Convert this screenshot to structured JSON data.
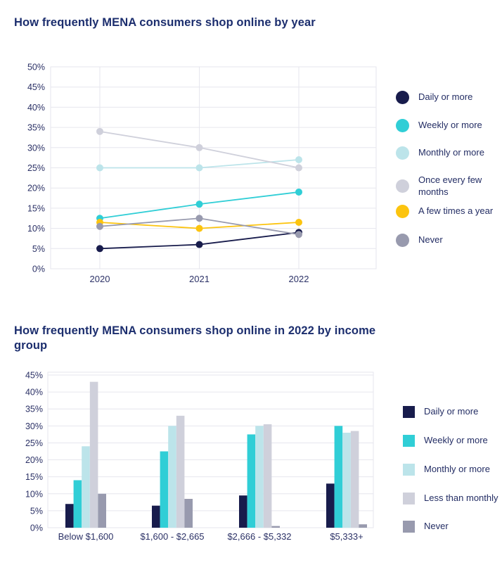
{
  "page": {
    "background": "#ffffff",
    "text_color": "#1c2e6e"
  },
  "colors": {
    "navy": "#181c4c",
    "teal": "#30ced6",
    "light_cyan": "#bce4ea",
    "light_gray": "#cfd0db",
    "yellow": "#fcc40f",
    "gray": "#989aae",
    "gridline": "#e6e6ee"
  },
  "chart_data": [
    {
      "type": "line",
      "title": "How frequently MENA consumers shop online by year",
      "x": [
        "2020",
        "2021",
        "2022"
      ],
      "series": [
        {
          "name": "Daily or more",
          "color": "#181c4c",
          "values": [
            5,
            6,
            9
          ]
        },
        {
          "name": "Weekly or more",
          "color": "#30ced6",
          "values": [
            12.5,
            16,
            19
          ]
        },
        {
          "name": "Monthly or more",
          "color": "#bce4ea",
          "values": [
            25,
            25,
            27
          ]
        },
        {
          "name": "Once every few months",
          "color": "#cfd0db",
          "values": [
            34,
            30,
            25
          ]
        },
        {
          "name": "A few times a year",
          "color": "#fcc40f",
          "values": [
            11.5,
            10,
            11.5
          ]
        },
        {
          "name": "Never",
          "color": "#989aae",
          "values": [
            10.5,
            12.5,
            8.5
          ]
        }
      ],
      "ylim": [
        0,
        50
      ],
      "ytick_step": 5,
      "ytick_suffix": "%",
      "grid": true,
      "legend_position": "right",
      "legend_marker": "circle"
    },
    {
      "type": "bar",
      "title": "How frequently MENA consumers shop online in 2022 by income group",
      "categories": [
        "Below $1,600",
        "$1,600 - $2,665",
        "$2,666 - $5,332",
        "$5,333+"
      ],
      "series": [
        {
          "name": "Daily or more",
          "color": "#181c4c",
          "values": [
            7,
            6.5,
            9.5,
            13
          ]
        },
        {
          "name": "Weekly or more",
          "color": "#30ced6",
          "values": [
            14,
            22.5,
            27.5,
            30
          ]
        },
        {
          "name": "Monthly or more",
          "color": "#bce4ea",
          "values": [
            24,
            30,
            30,
            28
          ]
        },
        {
          "name": "Less than monthly",
          "color": "#cfd0db",
          "values": [
            43,
            33,
            30.5,
            28.5
          ]
        },
        {
          "name": "Never",
          "color": "#989aae",
          "values": [
            10,
            8.5,
            0.5,
            1
          ]
        }
      ],
      "ylim": [
        0,
        45
      ],
      "ytick_step": 5,
      "ytick_suffix": "%",
      "grid": true,
      "legend_position": "right",
      "legend_marker": "square"
    }
  ]
}
